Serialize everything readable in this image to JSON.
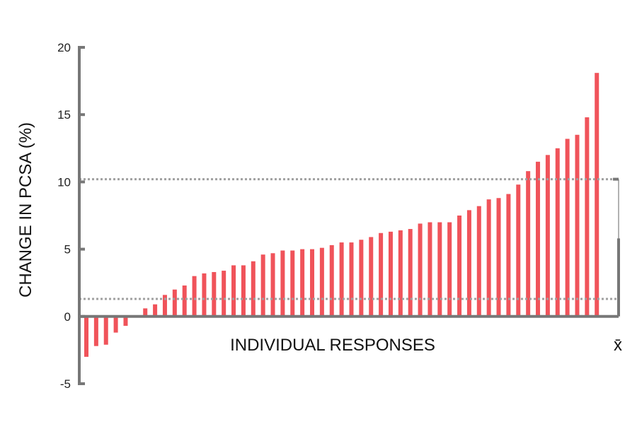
{
  "chart_data": {
    "type": "bar",
    "ylabel": "CHANGE IN PCSA (%)",
    "xlabel": "INDIVIDUAL RESPONSES",
    "ylim": [
      -5,
      20
    ],
    "yticks": [
      -5,
      0,
      5,
      10,
      15,
      20
    ],
    "values": [
      -3.0,
      -2.2,
      -2.1,
      -1.2,
      -0.7,
      0.0,
      0.6,
      0.9,
      1.6,
      2.0,
      2.3,
      3.0,
      3.2,
      3.3,
      3.4,
      3.8,
      3.8,
      4.1,
      4.6,
      4.7,
      4.9,
      4.9,
      5.0,
      5.0,
      5.1,
      5.3,
      5.5,
      5.5,
      5.7,
      5.9,
      6.2,
      6.3,
      6.4,
      6.5,
      6.9,
      7.0,
      7.0,
      7.0,
      7.5,
      7.9,
      8.2,
      8.7,
      8.8,
      9.1,
      9.8,
      10.8,
      11.5,
      12.0,
      12.5,
      13.2,
      13.5,
      14.8,
      18.1
    ],
    "reference_lines": [
      10.2,
      1.3
    ],
    "mean_marker": {
      "label": "x̄",
      "range": [
        0,
        10.2
      ],
      "mean": 5.8
    },
    "bar_color": "#f0535a",
    "axis_color": "#777777",
    "reference_line_color": "#a0a0a0",
    "grid": false
  }
}
